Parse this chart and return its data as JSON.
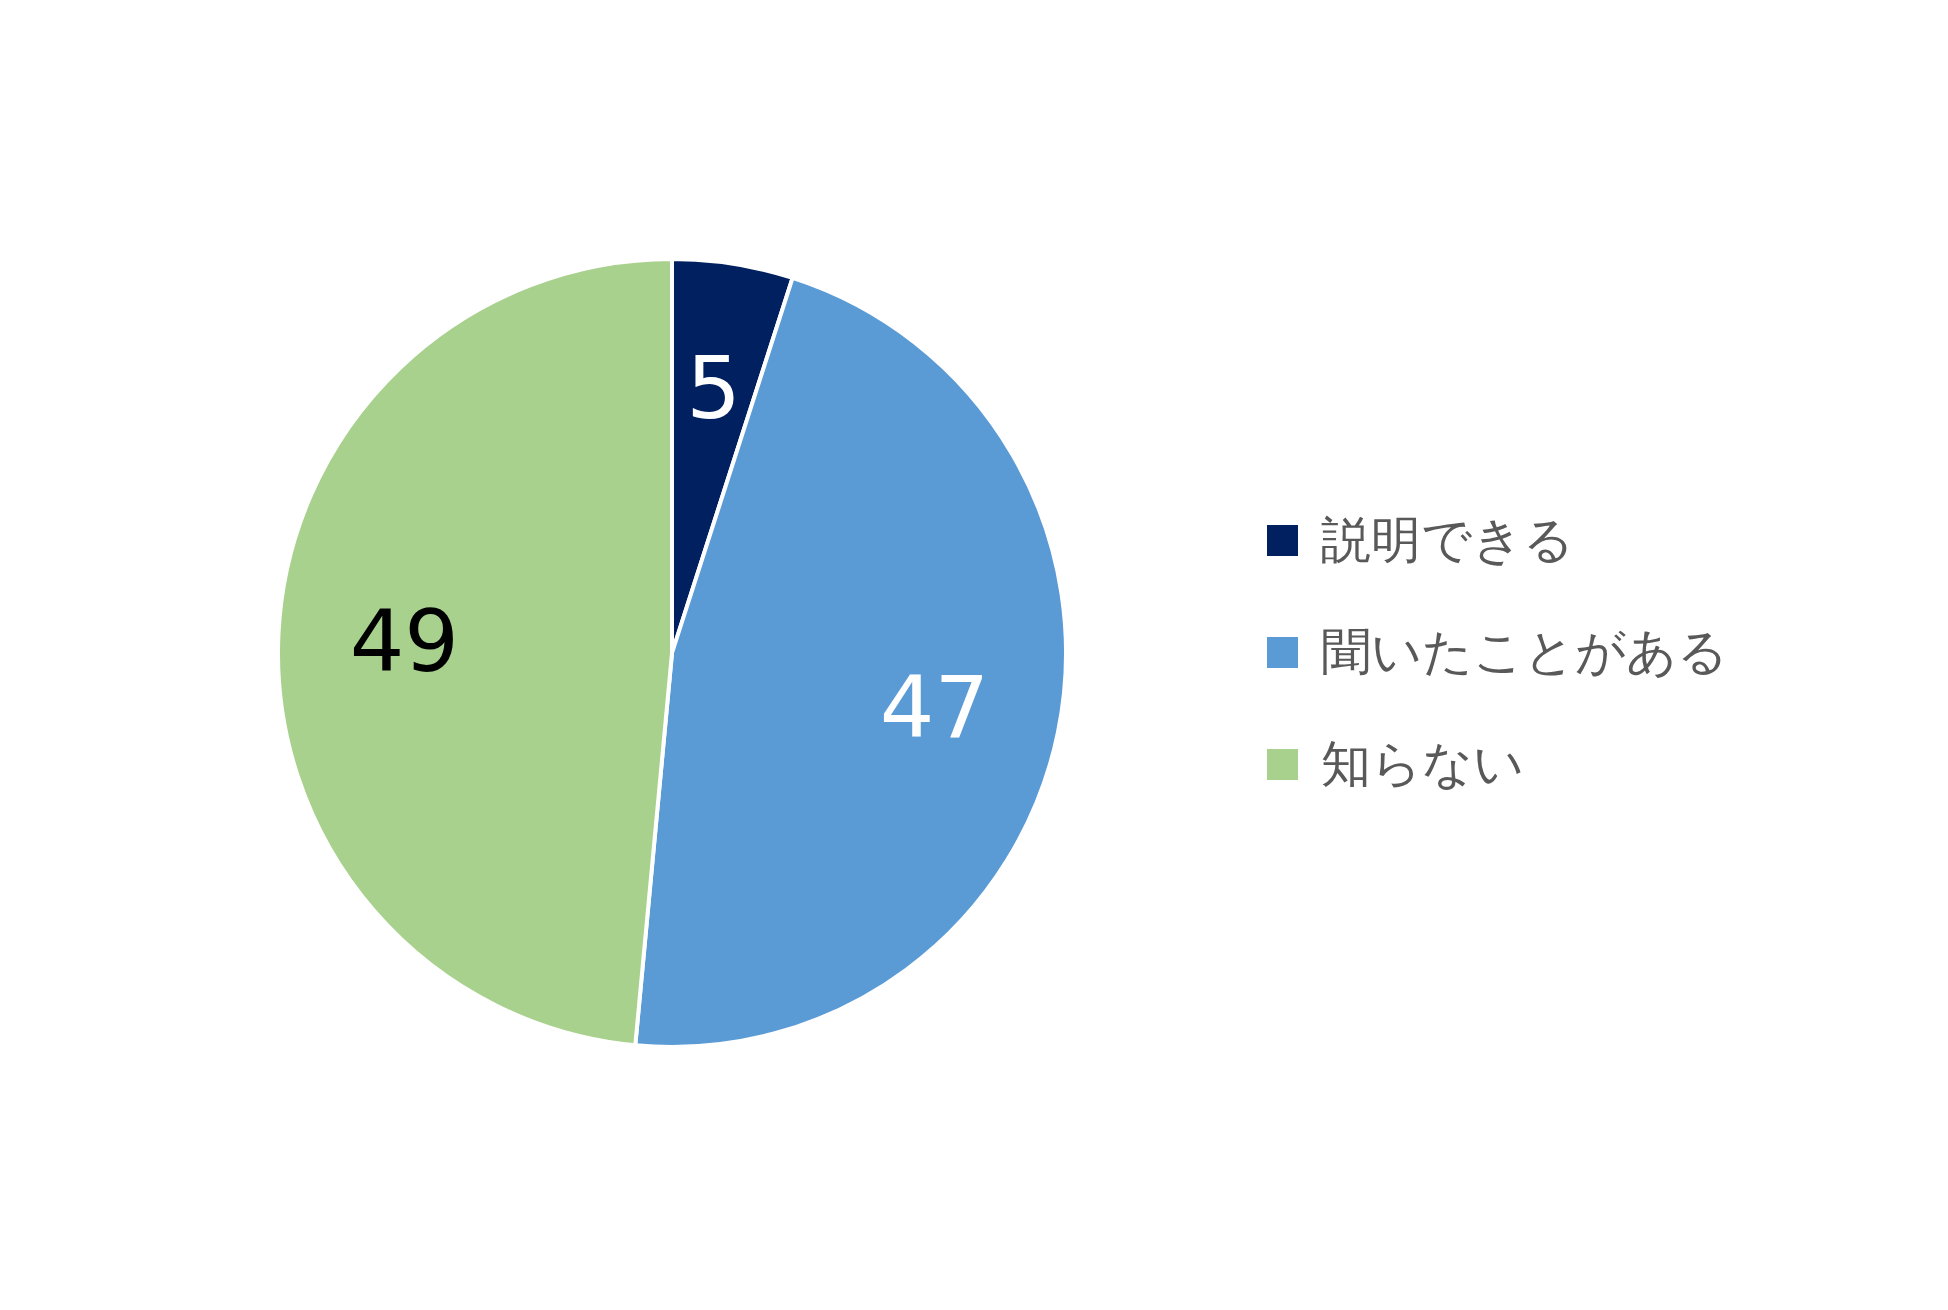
{
  "chart_data": {
    "type": "pie",
    "categories": [
      "説明できる",
      "聞いたことがある",
      "知らない"
    ],
    "values": [
      5,
      47,
      49
    ],
    "colors": [
      "#002060",
      "#5b9bd5",
      "#a9d18e"
    ],
    "data_labels": true,
    "legend": "right"
  }
}
